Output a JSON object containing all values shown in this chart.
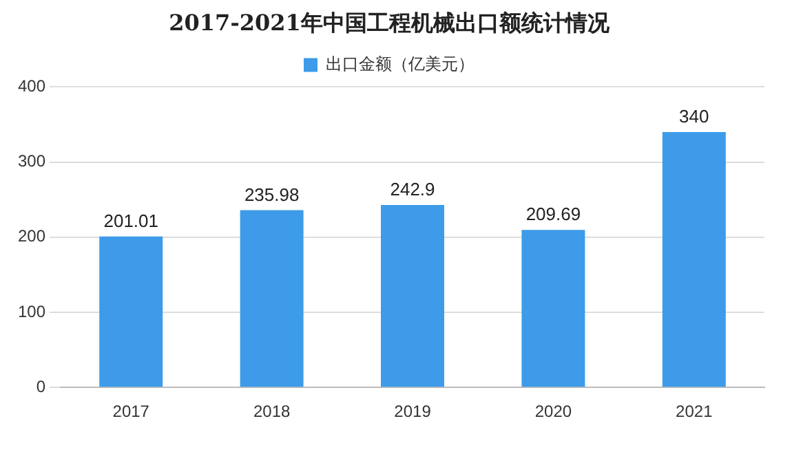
{
  "chart_data": {
    "type": "bar",
    "title": "2017-2021年中国工程机械出口额统计情况",
    "categories": [
      "2017",
      "2018",
      "2019",
      "2020",
      "2021"
    ],
    "series": [
      {
        "name": "出口金额（亿美元）",
        "color": "#3d9be9",
        "values": [
          201.01,
          235.98,
          242.9,
          209.69,
          340
        ]
      }
    ],
    "ylim": [
      0,
      400
    ],
    "yticks": [
      0,
      100,
      200,
      300,
      400
    ],
    "grid": "y",
    "legend": "top",
    "data_labels": true
  }
}
